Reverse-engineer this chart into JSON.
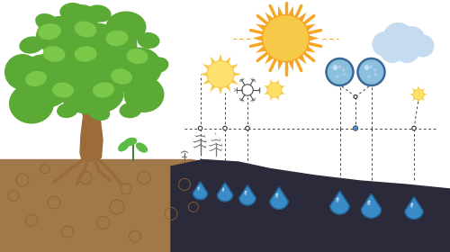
{
  "bg_color": "#ffffff",
  "soil_brown": "#A0784A",
  "soil_dark": "#2a2a3a",
  "soil_circle_color": "#8B6035",
  "sun_large_color": "#F5A623",
  "sun_large_inner": "#F7C948",
  "sun_medium_color": "#F7C948",
  "sun_small_color": "#F7C948",
  "cloud_color": "#C5DCF0",
  "cloud_edge": "#A8C8E0",
  "co2_fill": "#8BBFDE",
  "co2_edge": "#3A6A9A",
  "co2_dot": "#4A7FAA",
  "sketch_color": "#555555",
  "dash_color": "#333333",
  "water_fill": "#3A8CC8",
  "water_edge": "#1A5A8A",
  "tree_trunk": "#9B6B3A",
  "tree_leaf_main": "#5AAA35",
  "tree_leaf_light": "#7AC84A",
  "tree_leaf_dark": "#3D8A25",
  "seedling_color": "#5DBB45",
  "dot_color": "#4A90D9"
}
